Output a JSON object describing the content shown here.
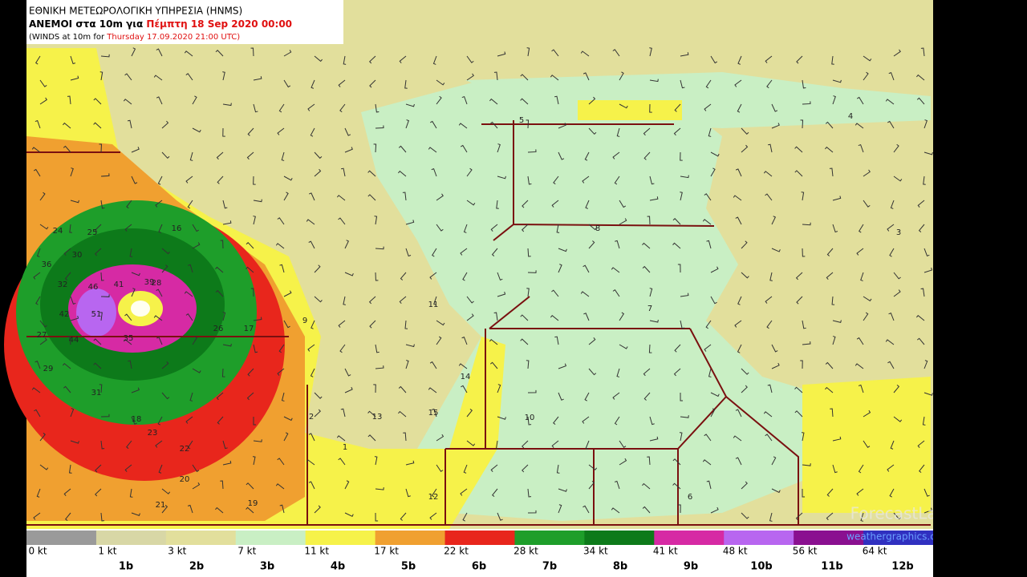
{
  "header": {
    "agency": "ΕΘΝΙΚΗ ΜΕΤΕΩΡΟΛΟΓΙΚΗ ΥΠΗΡΕΣΙΑ (HNMS)",
    "title": "ΑΝΕΜΟΙ στα 10m για",
    "valid": "Πέμπτη 18 Sep 2020 00:00",
    "subtitle": "(WINDS at 10m for",
    "run": "Thursday 17.09.2020 21:00 UTC)"
  },
  "legend": {
    "items": [
      {
        "label": "0 kt",
        "color": "#9a9a9a"
      },
      {
        "label": "1 kt",
        "color": "#d8d7a6"
      },
      {
        "label": "3 kt",
        "color": "#e2df9c"
      },
      {
        "label": "7 kt",
        "color": "#c9efc4"
      },
      {
        "label": "11 kt",
        "color": "#f6f24a"
      },
      {
        "label": "17 kt",
        "color": "#f0a030"
      },
      {
        "label": "22 kt",
        "color": "#e8261c"
      },
      {
        "label": "28 kt",
        "color": "#1e9e2a"
      },
      {
        "label": "34 kt",
        "color": "#0d7a1a"
      },
      {
        "label": "41 kt",
        "color": "#d62aa4"
      },
      {
        "label": "48 kt",
        "color": "#b866f0"
      },
      {
        "label": "56 kt",
        "color": "#8a1090"
      },
      {
        "label": "64 kt",
        "color": "#3030c0"
      }
    ],
    "beaufort": [
      "1b",
      "2b",
      "3b",
      "4b",
      "5b",
      "6b",
      "7b",
      "8b",
      "9b",
      "10b",
      "11b",
      "12b"
    ]
  },
  "map_labels": [
    46,
    51,
    41,
    39,
    42,
    44,
    35,
    30,
    32,
    27,
    24,
    25,
    23,
    22,
    20,
    19,
    21,
    16,
    15,
    14,
    13,
    12,
    11,
    10,
    9,
    8,
    7,
    6,
    5,
    4,
    3,
    2,
    1,
    18,
    17,
    26,
    28,
    29,
    31,
    36
  ],
  "watermark": {
    "brand": "ForecastLab",
    "url": "weathergraphics.com"
  }
}
